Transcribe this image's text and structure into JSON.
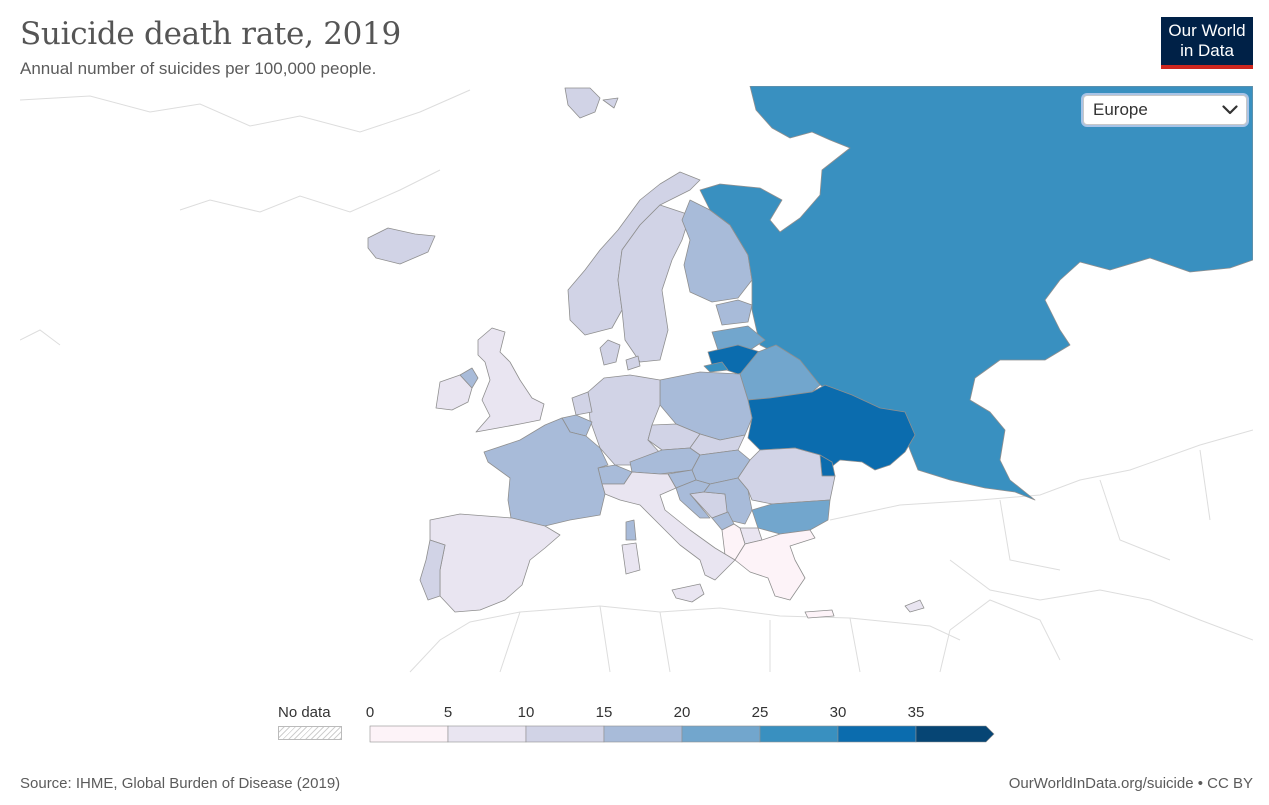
{
  "header": {
    "title": "Suicide death rate, 2019",
    "subtitle": "Annual number of suicides per 100,000 people."
  },
  "logo": {
    "line1": "Our World",
    "line2": "in Data"
  },
  "region_select": {
    "value": "Europe",
    "icon": "chevron-down-icon"
  },
  "colors": {
    "bin_0_5": "#fdf3f8",
    "bin_5_10": "#e9e5f1",
    "bin_10_15": "#d1d3e6",
    "bin_15_20": "#a8bbd9",
    "bin_20_25": "#72a6cd",
    "bin_25_30": "#3990c0",
    "bin_30_35": "#0b6cae",
    "bin_35_plus": "#064574",
    "outline": "#d8d8d8"
  },
  "legend": {
    "no_data_label": "No data",
    "ticks": [
      "0",
      "5",
      "10",
      "15",
      "20",
      "25",
      "30",
      "35"
    ],
    "bin_colors": [
      "#fdf3f8",
      "#e9e5f1",
      "#d1d3e6",
      "#a8bbd9",
      "#72a6cd",
      "#3990c0",
      "#0b6cae",
      "#064574"
    ]
  },
  "footer": {
    "source": "Source: IHME, Global Burden of Disease (2019)",
    "credit": "OurWorldInData.org/suicide • CC BY"
  }
}
